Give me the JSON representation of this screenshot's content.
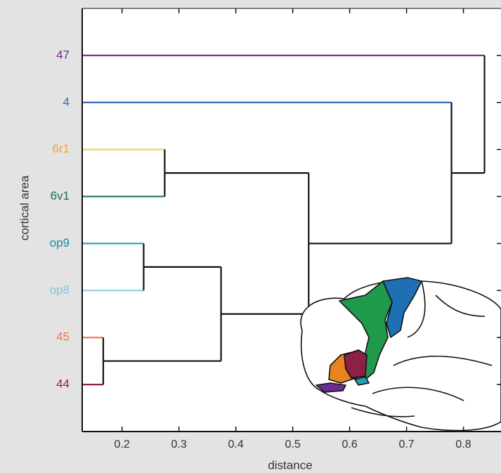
{
  "chart_data": {
    "type": "dendrogram",
    "xlabel": "distance",
    "ylabel": "cortical area",
    "categories": [
      "47",
      "4",
      "6r1",
      "6v1",
      "op9",
      "op8",
      "45",
      "44"
    ],
    "leaf_label_colors": [
      "#6b2d8f",
      "#2b6cb5",
      "#f0a23a",
      "#1e6e45",
      "#1b8aa0",
      "#7cc6e0",
      "#f07a55",
      "#8e1f45"
    ],
    "leaf_line_colors": [
      "#7a3296",
      "#2b6cb5",
      "#f5d44a",
      "#1e7a4a",
      "#2a9cb5",
      "#88cde5",
      "#f07a55",
      "#8e1f45"
    ],
    "merges": [
      {
        "children": [
          6,
          7
        ],
        "distance": 0.167
      },
      {
        "children": [
          4,
          5
        ],
        "distance": 0.238
      },
      {
        "children": [
          2,
          3
        ],
        "distance": 0.275
      },
      {
        "children": [
          9,
          8
        ],
        "distance": 0.374
      },
      {
        "children": [
          10,
          11
        ],
        "distance": 0.528
      },
      {
        "children": [
          1,
          12
        ],
        "distance": 0.779
      },
      {
        "children": [
          0,
          13
        ],
        "distance": 0.837
      }
    ],
    "xlim": [
      0.13,
      0.866
    ],
    "xticks": [
      0.2,
      0.3,
      0.4,
      0.5,
      0.6,
      0.7,
      0.8
    ]
  }
}
